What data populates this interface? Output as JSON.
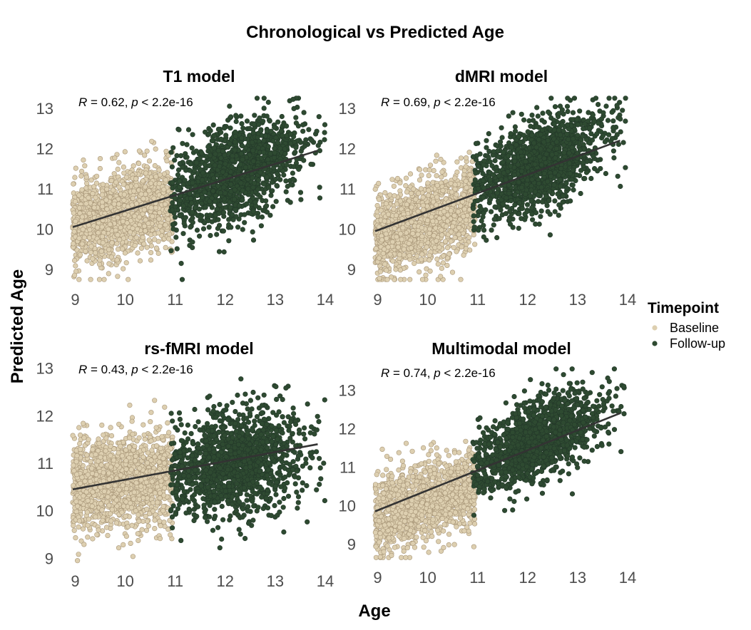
{
  "chart_data": {
    "type": "scatter",
    "title": "Chronological vs Predicted Age",
    "xlabel": "Age",
    "ylabel": "Predicted Age",
    "legend": {
      "title": "Timepoint",
      "placement": "right",
      "items": [
        {
          "name": "Baseline",
          "color": "#ddcfb0"
        },
        {
          "name": "Follow-up",
          "color": "#2e4a31"
        }
      ]
    },
    "colors": {
      "baseline": "#ddcfb0",
      "baseline_edge": "#a89678",
      "followup": "#2e4a31",
      "fit_line": "#333333"
    },
    "panels": [
      {
        "title": "T1 model",
        "stat_r": "0.62",
        "stat_p": "< 2.2e-16",
        "xlim": [
          8.85,
          14.1
        ],
        "ylim": [
          8.7,
          13.3
        ],
        "xticks": [
          "9",
          "10",
          "11",
          "12",
          "13",
          "14"
        ],
        "yticks": [
          "9",
          "10",
          "11",
          "12",
          "13"
        ],
        "fit": {
          "x": [
            8.95,
            13.85
          ],
          "y": [
            10.05,
            11.95
          ]
        },
        "baseline": {
          "xrange": [
            8.95,
            10.95
          ],
          "center": [
            9.95,
            10.4
          ],
          "ysd": 0.55,
          "yslope": 0.3,
          "n": 1400
        },
        "followup": {
          "xrange": [
            10.9,
            14.0
          ],
          "center": [
            12.2,
            11.4
          ],
          "ysd": 0.6,
          "yslope": 0.45,
          "n": 1400
        }
      },
      {
        "title": "dMRI model",
        "stat_r": "0.69",
        "stat_p": "< 2.2e-16",
        "xlim": [
          8.85,
          14.1
        ],
        "ylim": [
          8.7,
          13.3
        ],
        "xticks": [
          "9",
          "10",
          "11",
          "12",
          "13",
          "14"
        ],
        "yticks": [
          "9",
          "10",
          "11",
          "12",
          "13"
        ],
        "fit": {
          "x": [
            8.95,
            13.85
          ],
          "y": [
            9.95,
            12.2
          ]
        },
        "baseline": {
          "xrange": [
            8.95,
            10.95
          ],
          "center": [
            9.95,
            10.2
          ],
          "ysd": 0.55,
          "yslope": 0.4,
          "n": 1400
        },
        "followup": {
          "xrange": [
            10.9,
            14.0
          ],
          "center": [
            12.2,
            11.6
          ],
          "ysd": 0.55,
          "yslope": 0.5,
          "n": 1400
        }
      },
      {
        "title": "rs-fMRI model",
        "stat_r": "0.43",
        "stat_p": "< 2.2e-16",
        "xlim": [
          8.85,
          14.1
        ],
        "ylim": [
          8.9,
          13.1
        ],
        "xticks": [
          "9",
          "10",
          "11",
          "12",
          "13",
          "14"
        ],
        "yticks": [
          "9",
          "10",
          "11",
          "12",
          "13"
        ],
        "fit": {
          "x": [
            8.95,
            13.85
          ],
          "y": [
            10.45,
            11.4
          ]
        },
        "baseline": {
          "xrange": [
            8.95,
            10.95
          ],
          "center": [
            9.95,
            10.6
          ],
          "ysd": 0.5,
          "yslope": 0.15,
          "n": 1400
        },
        "followup": {
          "xrange": [
            10.9,
            14.0
          ],
          "center": [
            12.2,
            11.0
          ],
          "ysd": 0.55,
          "yslope": 0.2,
          "n": 1400
        }
      },
      {
        "title": "Multimodal model",
        "stat_r": "0.74",
        "stat_p": "< 2.2e-16",
        "xlim": [
          8.85,
          14.1
        ],
        "ylim": [
          8.6,
          13.6
        ],
        "xticks": [
          "9",
          "10",
          "11",
          "12",
          "13",
          "14"
        ],
        "yticks": [
          "9",
          "10",
          "11",
          "12",
          "13"
        ],
        "fit": {
          "x": [
            8.95,
            13.85
          ],
          "y": [
            9.85,
            12.4
          ]
        },
        "baseline": {
          "xrange": [
            8.95,
            10.95
          ],
          "center": [
            9.95,
            10.1
          ],
          "ysd": 0.5,
          "yslope": 0.45,
          "n": 1400
        },
        "followup": {
          "xrange": [
            10.9,
            14.0
          ],
          "center": [
            12.2,
            11.7
          ],
          "ysd": 0.5,
          "yslope": 0.55,
          "n": 1400
        }
      }
    ]
  }
}
